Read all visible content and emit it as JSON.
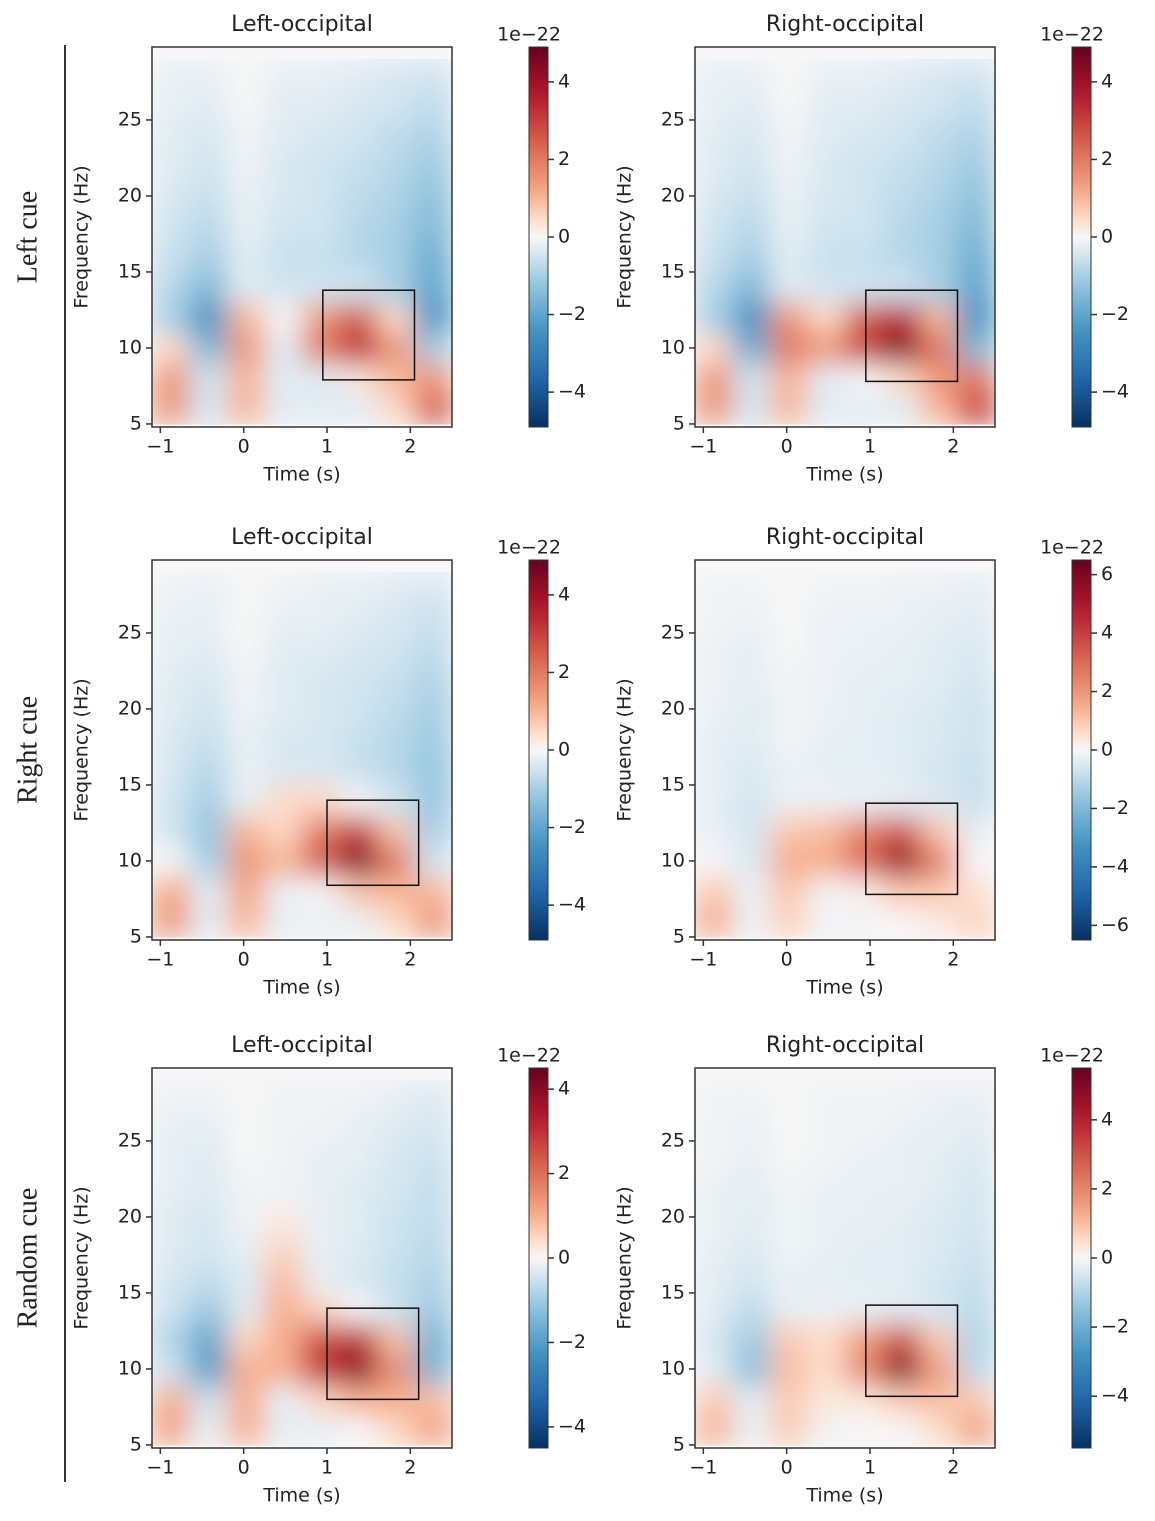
{
  "row_labels": [
    "Left cue",
    "Right cue",
    "Random cue"
  ],
  "chart_data": [
    {
      "type": "heatmap",
      "title": "Left-occipital",
      "x_label": "Time (s)",
      "y_label": "Frequency (Hz)",
      "colorbar_label": "1e−22",
      "colormap": "RdBu_r",
      "xlim": [
        -1.1,
        2.5
      ],
      "ylim": [
        4.8,
        29.8
      ],
      "xticks": [
        {
          "value": -1,
          "label": "−1"
        },
        0,
        1,
        2
      ],
      "yticks": [
        5,
        10,
        15,
        20,
        25
      ],
      "clim": [
        -4.9,
        4.9
      ],
      "cticks": [
        {
          "value": -4,
          "label": "−4"
        },
        {
          "value": -2,
          "label": "−2"
        },
        0,
        2,
        4
      ],
      "x": [
        -0.875,
        -0.425,
        0.025,
        0.475,
        0.925,
        1.375,
        1.825,
        2.275
      ],
      "y": [
        6,
        8,
        10,
        12,
        14,
        16,
        18,
        20,
        22,
        24,
        26,
        28
      ],
      "z": [
        [
          1.5,
          -0.5,
          1,
          -0.3,
          -0.3,
          -0.3,
          0.5,
          2.5
        ],
        [
          1.5,
          -0.5,
          1,
          -0.3,
          -0.3,
          0.3,
          1,
          1.5
        ],
        [
          0.5,
          -1.5,
          1.5,
          -0.3,
          2,
          3.5,
          1.5,
          -1
        ],
        [
          -1,
          -2.5,
          1,
          0,
          1.5,
          2.5,
          0.5,
          -2.5
        ],
        [
          -0.8,
          -1.5,
          -0.3,
          -0.5,
          -0.5,
          -0.5,
          -1,
          -2
        ],
        [
          -0.6,
          -1,
          -0.3,
          -0.6,
          -0.6,
          -0.8,
          -1,
          -1.8
        ],
        [
          -0.5,
          -0.8,
          -0.2,
          -0.5,
          -0.5,
          -0.8,
          -1,
          -1.5
        ],
        [
          -0.4,
          -0.6,
          -0.2,
          -0.4,
          -0.5,
          -0.7,
          -0.9,
          -1.3
        ],
        [
          -0.3,
          -0.5,
          -0.1,
          -0.4,
          -0.5,
          -0.6,
          -0.8,
          -1.1
        ],
        [
          -0.3,
          -0.4,
          -0.1,
          -0.3,
          -0.4,
          -0.5,
          -0.7,
          -0.9
        ],
        [
          -0.2,
          -0.3,
          0,
          -0.3,
          -0.3,
          -0.4,
          -0.5,
          -0.7
        ],
        [
          -0.2,
          -0.2,
          0,
          -0.2,
          -0.2,
          -0.3,
          -0.4,
          -0.5
        ]
      ],
      "box": {
        "x": [
          0.95,
          2.05
        ],
        "y": [
          7.9,
          13.8
        ]
      }
    },
    {
      "type": "heatmap",
      "title": "Right-occipital",
      "x_label": "Time (s)",
      "y_label": "Frequency (Hz)",
      "colorbar_label": "1e−22",
      "colormap": "RdBu_r",
      "xlim": [
        -1.1,
        2.5
      ],
      "ylim": [
        4.8,
        29.8
      ],
      "xticks": [
        {
          "value": -1,
          "label": "−1"
        },
        0,
        1,
        2
      ],
      "yticks": [
        5,
        10,
        15,
        20,
        25
      ],
      "clim": [
        -4.9,
        4.9
      ],
      "cticks": [
        {
          "value": -4,
          "label": "−4"
        },
        {
          "value": -2,
          "label": "−2"
        },
        0,
        2,
        4
      ],
      "x": [
        -0.875,
        -0.425,
        0.025,
        0.475,
        0.925,
        1.375,
        1.825,
        2.275
      ],
      "y": [
        6,
        8,
        10,
        12,
        14,
        16,
        18,
        20,
        22,
        24,
        26,
        28
      ],
      "z": [
        [
          1.5,
          -0.5,
          1,
          -0.3,
          -0.3,
          -0.3,
          1,
          3
        ],
        [
          1.5,
          -0.5,
          1,
          -0.3,
          0,
          0.5,
          1.5,
          2
        ],
        [
          0.5,
          -1.8,
          2,
          1.5,
          3,
          4.5,
          2,
          -1.5
        ],
        [
          -1,
          -2.5,
          1.5,
          0.5,
          2.5,
          3.5,
          1,
          -2.5
        ],
        [
          -0.8,
          -1.5,
          -0.3,
          -0.5,
          -0.5,
          -0.5,
          -1,
          -2
        ],
        [
          -0.6,
          -1,
          -0.3,
          -0.6,
          -0.6,
          -0.8,
          -1,
          -1.8
        ],
        [
          -0.5,
          -0.8,
          -0.2,
          -0.5,
          -0.5,
          -0.8,
          -1,
          -1.5
        ],
        [
          -0.4,
          -0.6,
          -0.2,
          -0.4,
          -0.5,
          -0.7,
          -0.9,
          -1.3
        ],
        [
          -0.3,
          -0.5,
          -0.1,
          -0.4,
          -0.5,
          -0.6,
          -0.8,
          -1.1
        ],
        [
          -0.3,
          -0.4,
          -0.1,
          -0.3,
          -0.4,
          -0.5,
          -0.7,
          -0.9
        ],
        [
          -0.2,
          -0.3,
          0,
          -0.3,
          -0.3,
          -0.4,
          -0.5,
          -0.7
        ],
        [
          -0.2,
          -0.2,
          0,
          -0.2,
          -0.2,
          -0.3,
          -0.4,
          -0.5
        ]
      ],
      "box": {
        "x": [
          0.95,
          2.05
        ],
        "y": [
          7.8,
          13.8
        ]
      }
    },
    {
      "type": "heatmap",
      "title": "Left-occipital",
      "x_label": "Time (s)",
      "y_label": "Frequency (Hz)",
      "colorbar_label": "1e−22",
      "colormap": "RdBu_r",
      "xlim": [
        -1.1,
        2.5
      ],
      "ylim": [
        4.8,
        29.8
      ],
      "xticks": [
        {
          "value": -1,
          "label": "−1"
        },
        0,
        1,
        2
      ],
      "yticks": [
        5,
        10,
        15,
        20,
        25
      ],
      "clim": [
        -4.9,
        4.9
      ],
      "cticks": [
        {
          "value": -4,
          "label": "−4"
        },
        {
          "value": -2,
          "label": "−2"
        },
        0,
        2,
        4
      ],
      "x": [
        -0.875,
        -0.425,
        0.025,
        0.475,
        0.925,
        1.375,
        1.825,
        2.275
      ],
      "y": [
        6,
        8,
        10,
        12,
        14,
        16,
        18,
        20,
        22,
        24,
        26,
        28
      ],
      "z": [
        [
          1.5,
          -0.3,
          1,
          -0.2,
          -0.2,
          -0.2,
          0.5,
          1.5
        ],
        [
          1.2,
          -0.3,
          1.2,
          -0.2,
          0,
          0.8,
          1,
          1
        ],
        [
          0,
          -1,
          1.5,
          1,
          2.5,
          4.5,
          2,
          -0.5
        ],
        [
          -0.5,
          -1.2,
          1,
          0.5,
          2,
          3,
          0.8,
          -1
        ],
        [
          -0.5,
          -1,
          -0.2,
          0.5,
          0.5,
          0,
          -0.5,
          -1.2
        ],
        [
          -0.4,
          -0.8,
          -0.2,
          -0.4,
          -0.4,
          -0.6,
          -0.8,
          -1.2
        ],
        [
          -0.4,
          -0.6,
          -0.2,
          -0.4,
          -0.4,
          -0.6,
          -0.8,
          -1.1
        ],
        [
          -0.3,
          -0.5,
          -0.1,
          -0.3,
          -0.4,
          -0.5,
          -0.7,
          -1
        ],
        [
          -0.3,
          -0.4,
          -0.1,
          -0.3,
          -0.4,
          -0.5,
          -0.6,
          -0.9
        ],
        [
          -0.2,
          -0.3,
          0,
          -0.3,
          -0.3,
          -0.4,
          -0.5,
          -0.7
        ],
        [
          -0.2,
          -0.2,
          0,
          -0.2,
          -0.2,
          -0.3,
          -0.4,
          -0.6
        ],
        [
          -0.1,
          -0.2,
          0,
          -0.1,
          -0.2,
          -0.2,
          -0.3,
          -0.4
        ]
      ],
      "box": {
        "x": [
          1,
          2.1
        ],
        "y": [
          8.4,
          14
        ]
      }
    },
    {
      "type": "heatmap",
      "title": "Right-occipital",
      "x_label": "Time (s)",
      "y_label": "Frequency (Hz)",
      "colorbar_label": "1e−22",
      "colormap": "RdBu_r",
      "xlim": [
        -1.1,
        2.5
      ],
      "ylim": [
        4.8,
        29.8
      ],
      "xticks": [
        {
          "value": -1,
          "label": "−1"
        },
        0,
        1,
        2
      ],
      "yticks": [
        5,
        10,
        15,
        20,
        25
      ],
      "clim": [
        -6.5,
        6.5
      ],
      "cticks": [
        {
          "value": -6,
          "label": "−6"
        },
        {
          "value": -4,
          "label": "−4"
        },
        {
          "value": -2,
          "label": "−2"
        },
        0,
        2,
        4,
        6
      ],
      "x": [
        -0.875,
        -0.425,
        0.025,
        0.475,
        0.925,
        1.375,
        1.825,
        2.275
      ],
      "y": [
        6,
        8,
        10,
        12,
        14,
        16,
        18,
        20,
        22,
        24,
        26,
        28
      ],
      "z": [
        [
          1.5,
          -0.2,
          0.8,
          -0.1,
          -0.1,
          0,
          0.3,
          0.8
        ],
        [
          1,
          -0.2,
          1,
          -0.1,
          0.2,
          1,
          1,
          0.5
        ],
        [
          0,
          -0.5,
          1.5,
          1.5,
          3,
          5.5,
          2.5,
          0
        ],
        [
          -0.3,
          -0.6,
          1,
          1.2,
          2.5,
          3.5,
          1,
          -0.3
        ],
        [
          -0.3,
          -0.6,
          -0.2,
          -0.2,
          -0.2,
          -0.3,
          -0.5,
          -0.8
        ],
        [
          -0.3,
          -0.5,
          -0.2,
          -0.3,
          -0.3,
          -0.4,
          -0.6,
          -0.8
        ],
        [
          -0.3,
          -0.4,
          -0.1,
          -0.3,
          -0.3,
          -0.4,
          -0.5,
          -0.7
        ],
        [
          -0.2,
          -0.4,
          -0.1,
          -0.2,
          -0.3,
          -0.4,
          -0.5,
          -0.7
        ],
        [
          -0.2,
          -0.3,
          -0.1,
          -0.2,
          -0.3,
          -0.3,
          -0.4,
          -0.6
        ],
        [
          -0.2,
          -0.3,
          0,
          -0.2,
          -0.2,
          -0.3,
          -0.4,
          -0.5
        ],
        [
          -0.1,
          -0.2,
          0,
          -0.2,
          -0.2,
          -0.2,
          -0.3,
          -0.4
        ],
        [
          -0.1,
          -0.1,
          0,
          -0.1,
          -0.1,
          -0.2,
          -0.2,
          -0.3
        ]
      ],
      "box": {
        "x": [
          0.95,
          2.05
        ],
        "y": [
          7.8,
          13.8
        ]
      }
    },
    {
      "type": "heatmap",
      "title": "Left-occipital",
      "x_label": "Time (s)",
      "y_label": "Frequency (Hz)",
      "colorbar_label": "1e−22",
      "colormap": "RdBu_r",
      "xlim": [
        -1.1,
        2.5
      ],
      "ylim": [
        4.8,
        29.8
      ],
      "xticks": [
        {
          "value": -1,
          "label": "−1"
        },
        0,
        1,
        2
      ],
      "yticks": [
        5,
        10,
        15,
        20,
        25
      ],
      "clim": [
        -4.5,
        4.5
      ],
      "cticks": [
        {
          "value": -4,
          "label": "−4"
        },
        {
          "value": -2,
          "label": "−2"
        },
        0,
        2,
        4
      ],
      "x": [
        -0.875,
        -0.425,
        0.025,
        0.475,
        0.925,
        1.375,
        1.825,
        2.275
      ],
      "y": [
        6,
        8,
        10,
        12,
        14,
        16,
        18,
        20,
        22,
        24,
        26,
        28
      ],
      "z": [
        [
          1.2,
          -0.2,
          1,
          -0.2,
          -0.2,
          0,
          0.5,
          1.2
        ],
        [
          1,
          -0.5,
          1,
          -0.2,
          0.5,
          1,
          1,
          0.8
        ],
        [
          -0.5,
          -2,
          1,
          1,
          3,
          4,
          1.5,
          -1.5
        ],
        [
          -0.8,
          -1.8,
          0.5,
          1,
          2.5,
          3,
          0.8,
          -1.5
        ],
        [
          -0.5,
          -1,
          -0.3,
          1,
          0.5,
          0,
          -0.5,
          -1
        ],
        [
          -0.4,
          -0.6,
          -0.3,
          0.8,
          -0.2,
          -0.4,
          -0.6,
          -0.8
        ],
        [
          -0.3,
          -0.4,
          -0.2,
          0.5,
          -0.2,
          -0.3,
          -0.5,
          -0.7
        ],
        [
          -0.3,
          -0.4,
          -0.1,
          0.2,
          -0.2,
          -0.3,
          -0.5,
          -0.6
        ],
        [
          -0.2,
          -0.3,
          -0.1,
          -0.1,
          -0.2,
          -0.3,
          -0.4,
          -0.6
        ],
        [
          -0.2,
          -0.3,
          0,
          -0.1,
          -0.2,
          -0.2,
          -0.4,
          -0.5
        ],
        [
          -0.2,
          -0.2,
          0,
          -0.1,
          -0.1,
          -0.2,
          -0.3,
          -0.4
        ],
        [
          -0.1,
          -0.1,
          0,
          -0.1,
          -0.1,
          -0.1,
          -0.2,
          -0.3
        ]
      ],
      "box": {
        "x": [
          1,
          2.1
        ],
        "y": [
          8,
          14
        ]
      }
    },
    {
      "type": "heatmap",
      "title": "Right-occipital",
      "x_label": "Time (s)",
      "y_label": "Frequency (Hz)",
      "colorbar_label": "1e−22",
      "colormap": "RdBu_r",
      "xlim": [
        -1.1,
        2.5
      ],
      "ylim": [
        4.8,
        29.8
      ],
      "xticks": [
        {
          "value": -1,
          "label": "−1"
        },
        0,
        1,
        2
      ],
      "yticks": [
        5,
        10,
        15,
        20,
        25
      ],
      "clim": [
        -5.5,
        5.5
      ],
      "cticks": [
        {
          "value": -4,
          "label": "−4"
        },
        {
          "value": -2,
          "label": "−2"
        },
        0,
        2,
        4
      ],
      "x": [
        -0.875,
        -0.425,
        0.025,
        0.475,
        0.925,
        1.375,
        1.825,
        2.275
      ],
      "y": [
        6,
        8,
        10,
        12,
        14,
        16,
        18,
        20,
        22,
        24,
        26,
        28
      ],
      "z": [
        [
          1.2,
          -0.2,
          0.8,
          -0.1,
          0,
          0,
          0.5,
          1.5
        ],
        [
          0.8,
          -0.3,
          0.8,
          0.3,
          0.3,
          0.8,
          1,
          0.8
        ],
        [
          -0.3,
          -1.5,
          1,
          0.5,
          2,
          5,
          1.5,
          -0.8
        ],
        [
          -0.5,
          -1.2,
          0.8,
          0.5,
          1.5,
          3,
          0.8,
          -1
        ],
        [
          -0.3,
          -0.8,
          -0.2,
          -0.2,
          -0.2,
          -0.3,
          -0.5,
          -0.8
        ],
        [
          -0.3,
          -0.5,
          -0.2,
          -0.3,
          -0.3,
          -0.3,
          -0.5,
          -0.7
        ],
        [
          -0.2,
          -0.4,
          -0.1,
          -0.2,
          -0.3,
          -0.3,
          -0.4,
          -0.6
        ],
        [
          -0.2,
          -0.3,
          -0.1,
          -0.2,
          -0.2,
          -0.3,
          -0.4,
          -0.5
        ],
        [
          -0.2,
          -0.3,
          -0.1,
          -0.2,
          -0.2,
          -0.2,
          -0.3,
          -0.5
        ],
        [
          -0.1,
          -0.2,
          0,
          -0.1,
          -0.2,
          -0.2,
          -0.3,
          -0.4
        ],
        [
          -0.1,
          -0.2,
          0,
          -0.1,
          -0.1,
          -0.2,
          -0.2,
          -0.3
        ],
        [
          -0.1,
          -0.1,
          0,
          -0.1,
          -0.1,
          -0.1,
          -0.2,
          -0.2
        ]
      ],
      "box": {
        "x": [
          0.95,
          2.05
        ],
        "y": [
          8.2,
          14.2
        ]
      }
    }
  ]
}
